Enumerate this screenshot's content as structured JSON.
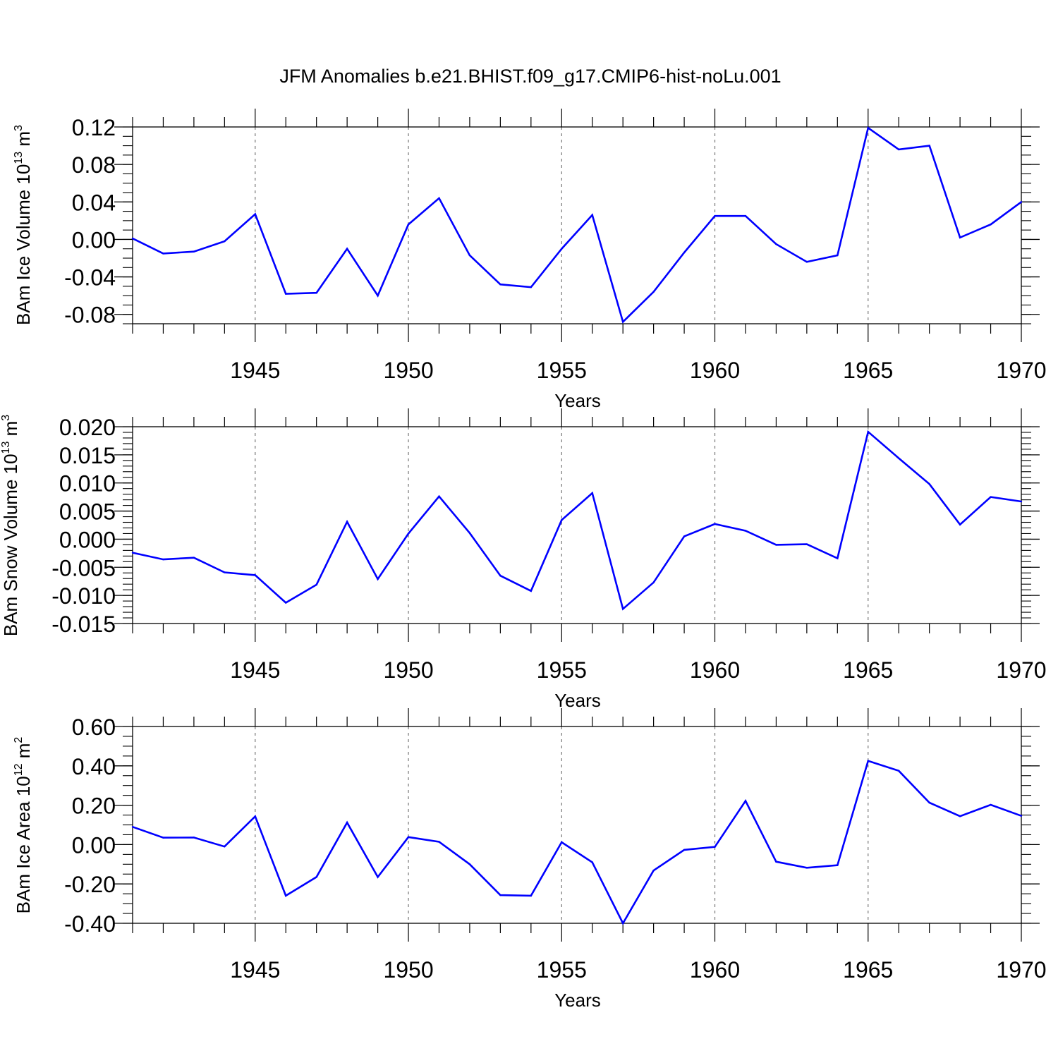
{
  "title": "JFM Anomalies b.e21.BHIST.f09_g17.CMIP6-hist-noLu.001",
  "colors": {
    "line": "#0000ff",
    "axis": "#000000",
    "grid": "#777777"
  },
  "chart_data": [
    {
      "type": "line",
      "title": "JFM Anomalies b.e21.BHIST.f09_g17.CMIP6-hist-noLu.001",
      "ylabel_main": "BAm Ice Volume 10",
      "ylabel_exp": "13",
      "ylabel_unit": " m",
      "ylabel_unit_exp": "3",
      "xlabel": "Years",
      "xlim": [
        1941,
        1970
      ],
      "ylim": [
        -0.09,
        0.12
      ],
      "yticks": [
        -0.08,
        -0.04,
        0.0,
        0.04,
        0.08,
        0.12
      ],
      "ytick_labels": [
        "-0.08",
        "-0.04",
        "0.00",
        "0.04",
        "0.08",
        "0.12"
      ],
      "yminor_step": 0.01,
      "xticks": [
        1945,
        1950,
        1955,
        1960,
        1965,
        1970
      ],
      "xtick_labels": [
        "1945",
        "1950",
        "1955",
        "1960",
        "1965",
        "1970"
      ],
      "grid": "dashed vertical at major x ticks",
      "x": [
        1941,
        1942,
        1943,
        1944,
        1945,
        1946,
        1947,
        1948,
        1949,
        1950,
        1951,
        1952,
        1953,
        1954,
        1955,
        1956,
        1957,
        1958,
        1959,
        1960,
        1961,
        1962,
        1963,
        1964,
        1965,
        1966,
        1967,
        1968,
        1969,
        1970
      ],
      "y": [
        0.001,
        -0.015,
        -0.013,
        -0.002,
        0.027,
        -0.058,
        -0.057,
        -0.01,
        -0.06,
        0.016,
        0.044,
        -0.017,
        -0.048,
        -0.051,
        -0.01,
        0.026,
        -0.088,
        -0.056,
        -0.014,
        0.025,
        0.025,
        -0.005,
        -0.024,
        -0.017,
        0.119,
        0.096,
        0.1,
        0.002,
        0.016,
        0.04
      ]
    },
    {
      "type": "line",
      "ylabel_main": "BAm Snow Volume 10",
      "ylabel_exp": "13",
      "ylabel_unit": " m",
      "ylabel_unit_exp": "3",
      "xlabel": "Years",
      "xlim": [
        1941,
        1970
      ],
      "ylim": [
        -0.015,
        0.02
      ],
      "yticks": [
        -0.015,
        -0.01,
        -0.005,
        0.0,
        0.005,
        0.01,
        0.015,
        0.02
      ],
      "ytick_labels": [
        "-0.015",
        "-0.010",
        "-0.005",
        "0.000",
        "0.005",
        "0.010",
        "0.015",
        "0.020"
      ],
      "yminor_step": 0.001,
      "xticks": [
        1945,
        1950,
        1955,
        1960,
        1965,
        1970
      ],
      "xtick_labels": [
        "1945",
        "1950",
        "1955",
        "1960",
        "1965",
        "1970"
      ],
      "grid": "dashed vertical at major x ticks",
      "x": [
        1941,
        1942,
        1943,
        1944,
        1945,
        1946,
        1947,
        1948,
        1949,
        1950,
        1951,
        1952,
        1953,
        1954,
        1955,
        1956,
        1957,
        1958,
        1959,
        1960,
        1961,
        1962,
        1963,
        1964,
        1965,
        1966,
        1967,
        1968,
        1969,
        1970
      ],
      "y": [
        -0.0024,
        -0.0036,
        -0.0033,
        -0.0059,
        -0.0064,
        -0.0113,
        -0.0081,
        0.0031,
        -0.0071,
        0.001,
        0.0076,
        0.0011,
        -0.0065,
        -0.0092,
        0.0034,
        0.0082,
        -0.0124,
        -0.0077,
        0.0005,
        0.0027,
        0.0015,
        -0.001,
        -0.0009,
        -0.0034,
        0.0191,
        0.0144,
        0.0098,
        0.0026,
        0.0075,
        0.0067
      ]
    },
    {
      "type": "line",
      "ylabel_main": "BAm Ice Area 10",
      "ylabel_exp": "12",
      "ylabel_unit": " m",
      "ylabel_unit_exp": "2",
      "xlabel": "Years",
      "xlim": [
        1941,
        1970
      ],
      "ylim": [
        -0.4,
        0.6
      ],
      "yticks": [
        -0.4,
        -0.2,
        0.0,
        0.2,
        0.4,
        0.6
      ],
      "ytick_labels": [
        "-0.40",
        "-0.20",
        "0.00",
        "0.20",
        "0.40",
        "0.60"
      ],
      "yminor_step": 0.05,
      "xticks": [
        1945,
        1950,
        1955,
        1960,
        1965,
        1970
      ],
      "xtick_labels": [
        "1945",
        "1950",
        "1955",
        "1960",
        "1965",
        "1970"
      ],
      "grid": "dashed vertical at major x ticks",
      "x": [
        1941,
        1942,
        1943,
        1944,
        1945,
        1946,
        1947,
        1948,
        1949,
        1950,
        1951,
        1952,
        1953,
        1954,
        1955,
        1956,
        1957,
        1958,
        1959,
        1960,
        1961,
        1962,
        1963,
        1964,
        1965,
        1966,
        1967,
        1968,
        1969,
        1970
      ],
      "y": [
        0.09,
        0.035,
        0.036,
        -0.01,
        0.143,
        -0.26,
        -0.165,
        0.112,
        -0.165,
        0.038,
        0.014,
        -0.1,
        -0.257,
        -0.26,
        0.012,
        -0.09,
        -0.4,
        -0.132,
        -0.027,
        -0.012,
        0.222,
        -0.087,
        -0.118,
        -0.105,
        0.425,
        0.375,
        0.213,
        0.144,
        0.202,
        0.146
      ]
    }
  ]
}
